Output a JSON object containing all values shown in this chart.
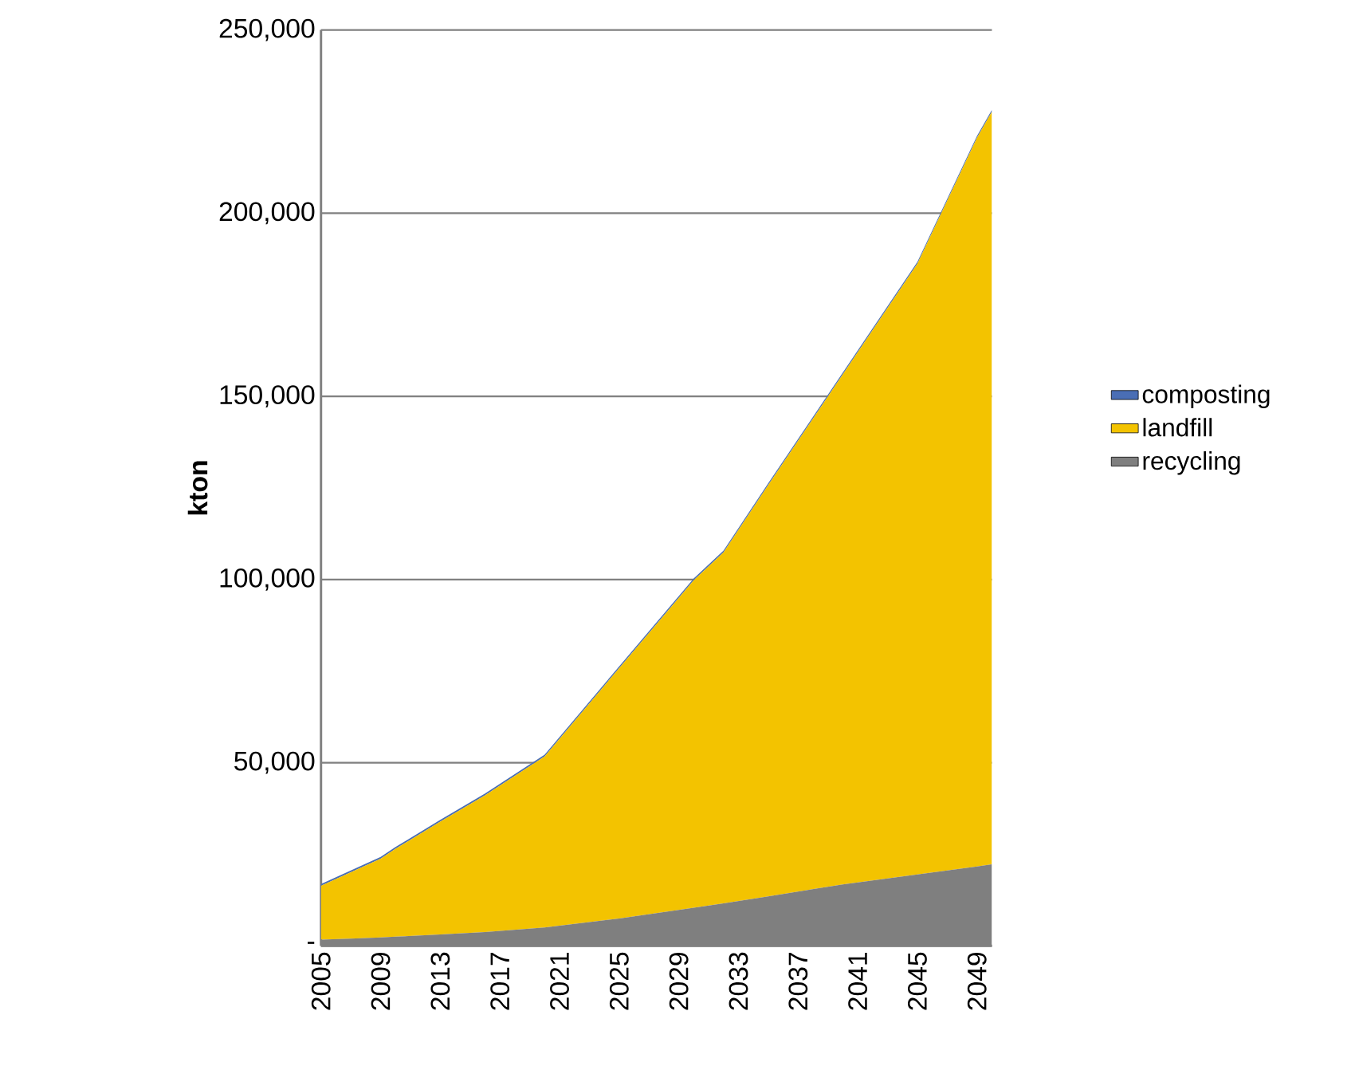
{
  "chart_data": {
    "type": "area",
    "stacked": true,
    "ylabel": "kton",
    "x": [
      2005,
      2007,
      2009,
      2010,
      2013,
      2016,
      2020,
      2025,
      2030,
      2032,
      2035,
      2040,
      2045,
      2049,
      2050
    ],
    "series": [
      {
        "name": "composting",
        "color": "#4a6eb5",
        "values": [
          500,
          500,
          500,
          500,
          500,
          500,
          500,
          500,
          500,
          500,
          500,
          500,
          500,
          500,
          500
        ]
      },
      {
        "name": "landfill",
        "color": "#f3c300",
        "values": [
          14700,
          18100,
          21500,
          24000,
          30800,
          37300,
          46700,
          68300,
          89400,
          95800,
          112300,
          139200,
          166700,
          198900,
          205400
        ]
      },
      {
        "name": "recycling",
        "color": "#7f7f7f",
        "values": [
          1700,
          2000,
          2300,
          2500,
          3100,
          3800,
          5000,
          7500,
          10400,
          11600,
          13500,
          16800,
          19500,
          21700,
          22300
        ]
      }
    ],
    "xlim": [
      2005,
      2050
    ],
    "xticks": [
      2005,
      2009,
      2013,
      2017,
      2021,
      2025,
      2029,
      2033,
      2037,
      2041,
      2045,
      2049
    ],
    "ylim": [
      0,
      250000
    ],
    "yticks": [
      {
        "value": 0,
        "label": "-"
      },
      {
        "value": 50000,
        "label": "50,000"
      },
      {
        "value": 100000,
        "label": "100,000"
      },
      {
        "value": 150000,
        "label": "150,000"
      },
      {
        "value": 200000,
        "label": "200,000"
      },
      {
        "value": 250000,
        "label": "250,000"
      }
    ],
    "grid": "y",
    "legend": "right"
  }
}
